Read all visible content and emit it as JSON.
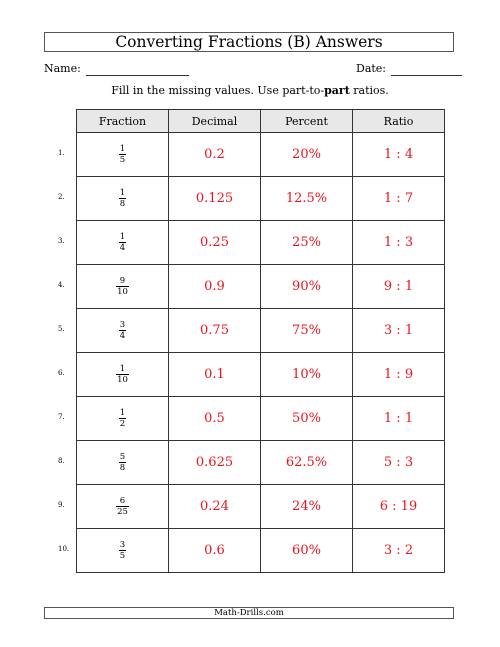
{
  "title": "Converting Fractions (B) Answers",
  "name_label": "Name:",
  "date_label": "Date:",
  "instructions": {
    "before": "Fill in the missing values. Use part-to-",
    "bold": "part",
    "after": " ratios."
  },
  "columns": [
    "Fraction",
    "Decimal",
    "Percent",
    "Ratio"
  ],
  "rows": [
    {
      "number": "1.",
      "numerator": "1",
      "denominator": "5",
      "decimal": "0.2",
      "percent": "20%",
      "ratio": "1 : 4"
    },
    {
      "number": "2.",
      "numerator": "1",
      "denominator": "8",
      "decimal": "0.125",
      "percent": "12.5%",
      "ratio": "1 : 7"
    },
    {
      "number": "3.",
      "numerator": "1",
      "denominator": "4",
      "decimal": "0.25",
      "percent": "25%",
      "ratio": "1 : 3"
    },
    {
      "number": "4.",
      "numerator": "9",
      "denominator": "10",
      "decimal": "0.9",
      "percent": "90%",
      "ratio": "9 : 1"
    },
    {
      "number": "5.",
      "numerator": "3",
      "denominator": "4",
      "decimal": "0.75",
      "percent": "75%",
      "ratio": "3 : 1"
    },
    {
      "number": "6.",
      "numerator": "1",
      "denominator": "10",
      "decimal": "0.1",
      "percent": "10%",
      "ratio": "1 : 9"
    },
    {
      "number": "7.",
      "numerator": "1",
      "denominator": "2",
      "decimal": "0.5",
      "percent": "50%",
      "ratio": "1 : 1"
    },
    {
      "number": "8.",
      "numerator": "5",
      "denominator": "8",
      "decimal": "0.625",
      "percent": "62.5%",
      "ratio": "5 : 3"
    },
    {
      "number": "9.",
      "numerator": "6",
      "denominator": "25",
      "decimal": "0.24",
      "percent": "24%",
      "ratio": "6 : 19"
    },
    {
      "number": "10.",
      "numerator": "3",
      "denominator": "5",
      "decimal": "0.6",
      "percent": "60%",
      "ratio": "3 : 2"
    }
  ],
  "footer": "Math-Drills.com",
  "colors": {
    "answer": "#e8141e",
    "header_bg": "#e8e8e8",
    "border": "#333333"
  }
}
